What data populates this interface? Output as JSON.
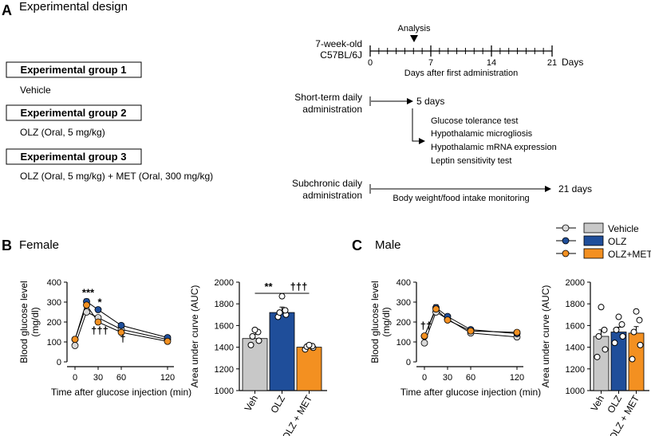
{
  "panel_a": {
    "letter": "A",
    "title": "Experimental design",
    "groups": [
      {
        "label": "Experimental group 1",
        "desc": "Vehicle"
      },
      {
        "label": "Experimental group 2",
        "desc": "OLZ (Oral, 5 mg/kg)"
      },
      {
        "label": "Experimental group 3",
        "desc": "OLZ (Oral, 5 mg/kg) + MET (Oral, 300 mg/kg)"
      }
    ],
    "timeline": {
      "analysis_label": "Analysis",
      "mouse_line1": "7-week-old",
      "mouse_line2": "C57BL/6J",
      "ticks": [
        "0",
        "7",
        "14",
        "21"
      ],
      "unit": "Days",
      "axis_label": "Days after first administration"
    },
    "short_term": {
      "line1": "Short-term daily",
      "line2": "administration",
      "duration": "5 days",
      "tests": [
        "Glucose tolerance test",
        "Hypothalamic microgliosis",
        "Hypothalamic mRNA expression",
        "Leptin sensitivity test"
      ]
    },
    "subchronic": {
      "line1": "Subchronic daily",
      "line2": "administration",
      "duration": "21 days",
      "monitoring": "Body weight/food intake monitoring"
    }
  },
  "panel_b": {
    "letter": "B",
    "title": "Female"
  },
  "panel_c": {
    "letter": "C",
    "title": "Male"
  },
  "legend": {
    "items": [
      "Vehicle",
      "OLZ",
      "OLZ+MET"
    ]
  },
  "colors": {
    "vehicle_point": "#d9d9d9",
    "vehicle_bar": "#c8c8c8",
    "olz": "#1f4e9a",
    "met": "#f39021"
  },
  "chart_data": [
    {
      "id": "female_gtt",
      "type": "line",
      "ylabel_line1": "Blood glucose level",
      "ylabel_line2": "(mg/dl)",
      "xlabel": "Time after glucose injection (min)",
      "x": [
        0,
        15,
        30,
        60,
        120
      ],
      "xticks": [
        "0",
        "30",
        "60",
        "120"
      ],
      "ylim": [
        0,
        400
      ],
      "yticks": [
        "0",
        "100",
        "200",
        "300",
        "400"
      ],
      "series": [
        {
          "name": "Vehicle",
          "values": [
            82,
            250,
            222,
            163,
            112
          ],
          "err": [
            0,
            10,
            7,
            6,
            5
          ]
        },
        {
          "name": "OLZ",
          "values": [
            113,
            303,
            262,
            183,
            122
          ],
          "err": [
            0,
            13,
            10,
            8,
            6
          ]
        },
        {
          "name": "OLZ+MET",
          "values": [
            113,
            285,
            200,
            148,
            103
          ],
          "err": [
            0,
            12,
            7,
            6,
            4
          ]
        }
      ],
      "annotations": [
        {
          "text": "***",
          "x": 15,
          "y": 330
        },
        {
          "text": "*",
          "x": 30,
          "y": 283
        },
        {
          "text": "†††",
          "x": 30,
          "y": 140
        },
        {
          "text": "†",
          "x": 60,
          "y": 100
        }
      ]
    },
    {
      "id": "female_auc",
      "type": "bar",
      "ylabel": "Area under curve (AUC)",
      "categories": [
        "Veh",
        "OLZ",
        "OLZ + MET"
      ],
      "values": [
        1480,
        1720,
        1400
      ],
      "err": [
        40,
        50,
        15
      ],
      "ylim": [
        1000,
        2000
      ],
      "yticks": [
        "1000",
        "1200",
        "1400",
        "1600",
        "1800",
        "2000"
      ],
      "points": [
        [
          1420,
          1460,
          1500,
          1540,
          1560
        ],
        [
          1680,
          1700,
          1720,
          1740,
          1870
        ],
        [
          1380,
          1395,
          1405,
          1410,
          1420
        ]
      ],
      "annotations": [
        {
          "text": "**"
        },
        {
          "text": "†††"
        }
      ]
    },
    {
      "id": "male_gtt",
      "type": "line",
      "ylabel_line1": "Blood glucose level",
      "ylabel_line2": "(mg/dl)",
      "xlabel": "Time after glucose injection (min)",
      "x": [
        0,
        15,
        30,
        60,
        120
      ],
      "xticks": [
        "0",
        "30",
        "60",
        "120"
      ],
      "ylim": [
        0,
        400
      ],
      "yticks": [
        "0",
        "100",
        "200",
        "300",
        "400"
      ],
      "series": [
        {
          "name": "Vehicle",
          "values": [
            95,
            250,
            215,
            145,
            125
          ],
          "err": [
            0,
            9,
            8,
            5,
            4
          ]
        },
        {
          "name": "OLZ",
          "values": [
            128,
            272,
            228,
            162,
            142
          ],
          "err": [
            0,
            15,
            8,
            7,
            5
          ]
        },
        {
          "name": "OLZ+MET",
          "values": [
            130,
            265,
            210,
            155,
            148
          ],
          "err": [
            0,
            12,
            8,
            6,
            5
          ]
        }
      ],
      "annotations": [
        {
          "text": "††",
          "x": 0,
          "y": 165
        }
      ]
    },
    {
      "id": "male_auc",
      "type": "bar",
      "ylabel": "Area under curve (AUC)",
      "categories": [
        "Veh",
        "OLZ",
        "OLZ + MET"
      ],
      "values": [
        1500,
        1540,
        1530
      ],
      "err": [
        60,
        45,
        60
      ],
      "ylim": [
        1000,
        2000
      ],
      "yticks": [
        "1000",
        "1200",
        "1400",
        "1600",
        "1800",
        "2000"
      ],
      "points": [
        [
          1310,
          1380,
          1500,
          1560,
          1770
        ],
        [
          1440,
          1500,
          1560,
          1610,
          1680
        ],
        [
          1290,
          1420,
          1540,
          1650,
          1730
        ]
      ]
    }
  ]
}
